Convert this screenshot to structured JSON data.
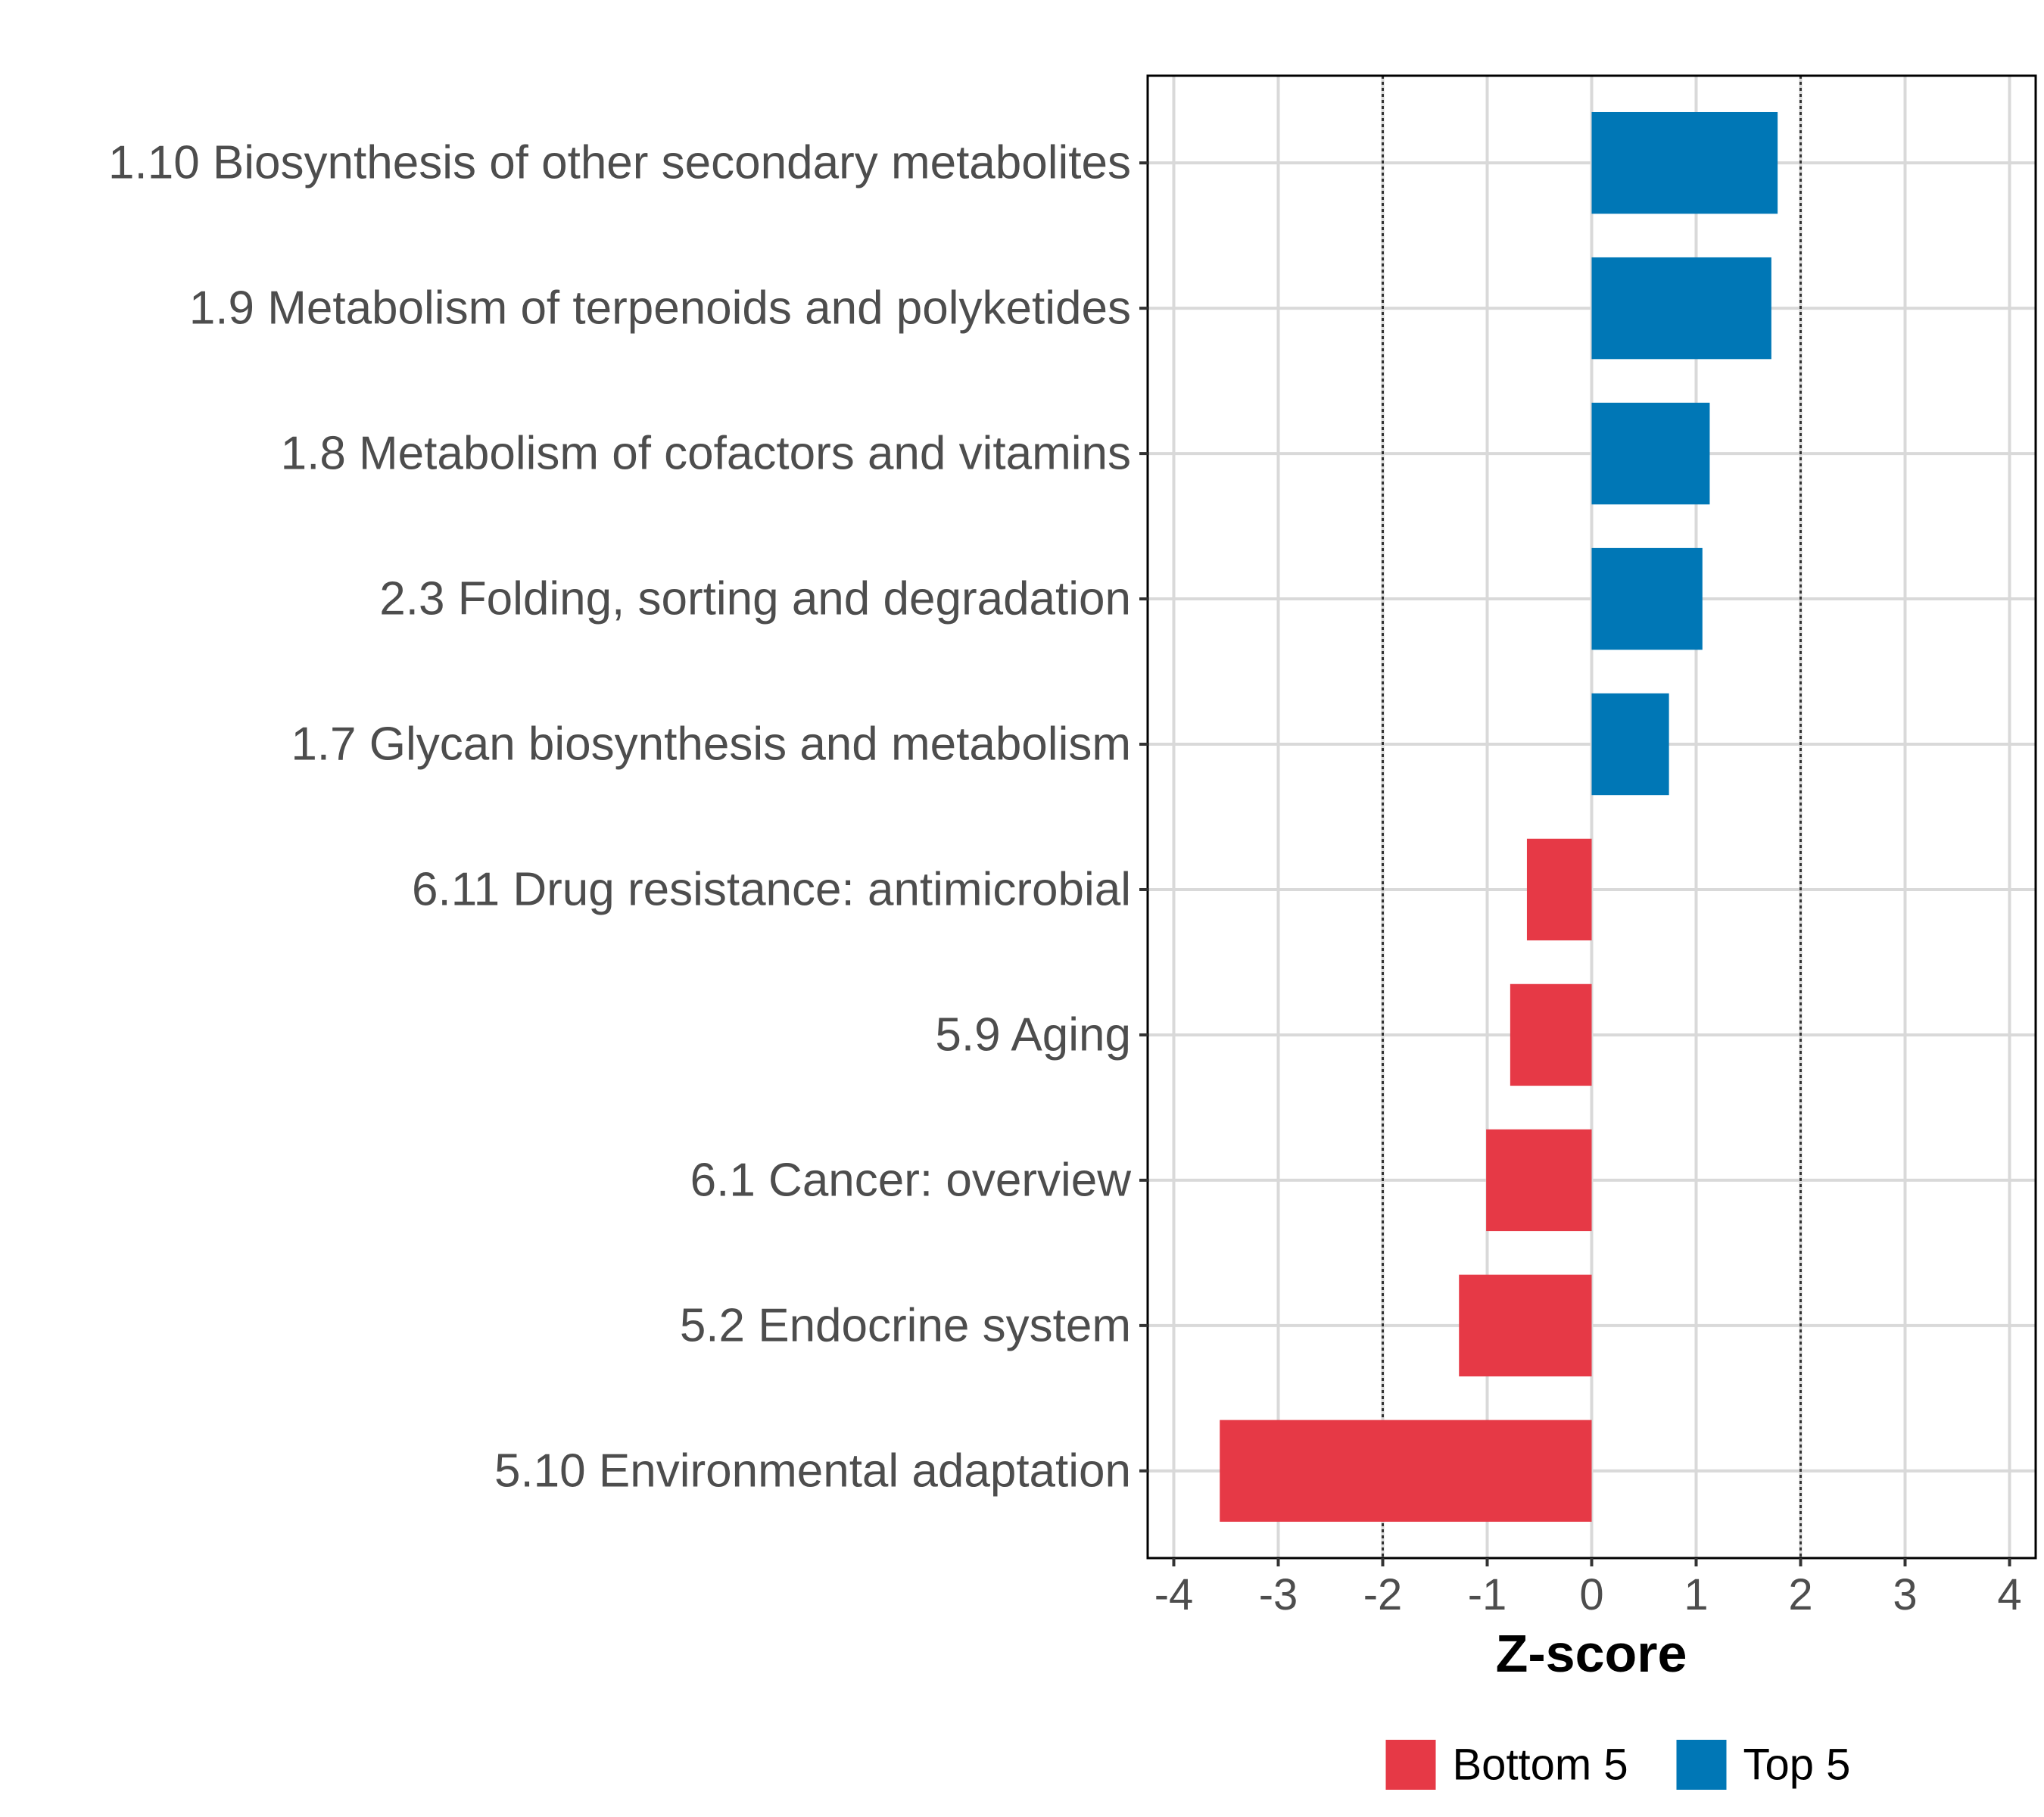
{
  "chart_data": {
    "type": "bar",
    "orientation": "horizontal",
    "categories": [
      "1.10 Biosynthesis of other secondary metabolites",
      "1.9 Metabolism of terpenoids and polyketides",
      "1.8 Metabolism of cofactors and vitamins",
      "2.3 Folding, sorting and degradation",
      "1.7 Glycan biosynthesis and metabolism",
      "6.11 Drug resistance: antimicrobial",
      "5.9 Aging",
      "6.1 Cancer: overview",
      "5.2 Endocrine system",
      "5.10 Environmental adaptation"
    ],
    "values": [
      1.78,
      1.72,
      1.13,
      1.06,
      0.74,
      -0.62,
      -0.78,
      -1.01,
      -1.27,
      -3.56
    ],
    "groups": [
      "Top 5",
      "Top 5",
      "Top 5",
      "Top 5",
      "Top 5",
      "Bottom 5",
      "Bottom 5",
      "Bottom 5",
      "Bottom 5",
      "Bottom 5"
    ],
    "xlabel": "Z-score",
    "ylabel": "",
    "xlim": [
      -4.25,
      4.25
    ],
    "xticks": [
      -4,
      -3,
      -2,
      -1,
      0,
      1,
      2,
      3,
      4
    ],
    "xtick_labels": [
      "-4",
      "-3",
      "-2",
      "-1",
      "0",
      "1",
      "2",
      "3",
      "4"
    ],
    "reference_lines": [
      -2,
      2
    ],
    "grid": true,
    "legend_position": "bottom",
    "legend": [
      {
        "name": "Bottom 5",
        "color": "#e63946"
      },
      {
        "name": "Top 5",
        "color": "#0077b6"
      }
    ],
    "colors": {
      "Top 5": "#0077b6",
      "Bottom 5": "#e63946"
    }
  }
}
